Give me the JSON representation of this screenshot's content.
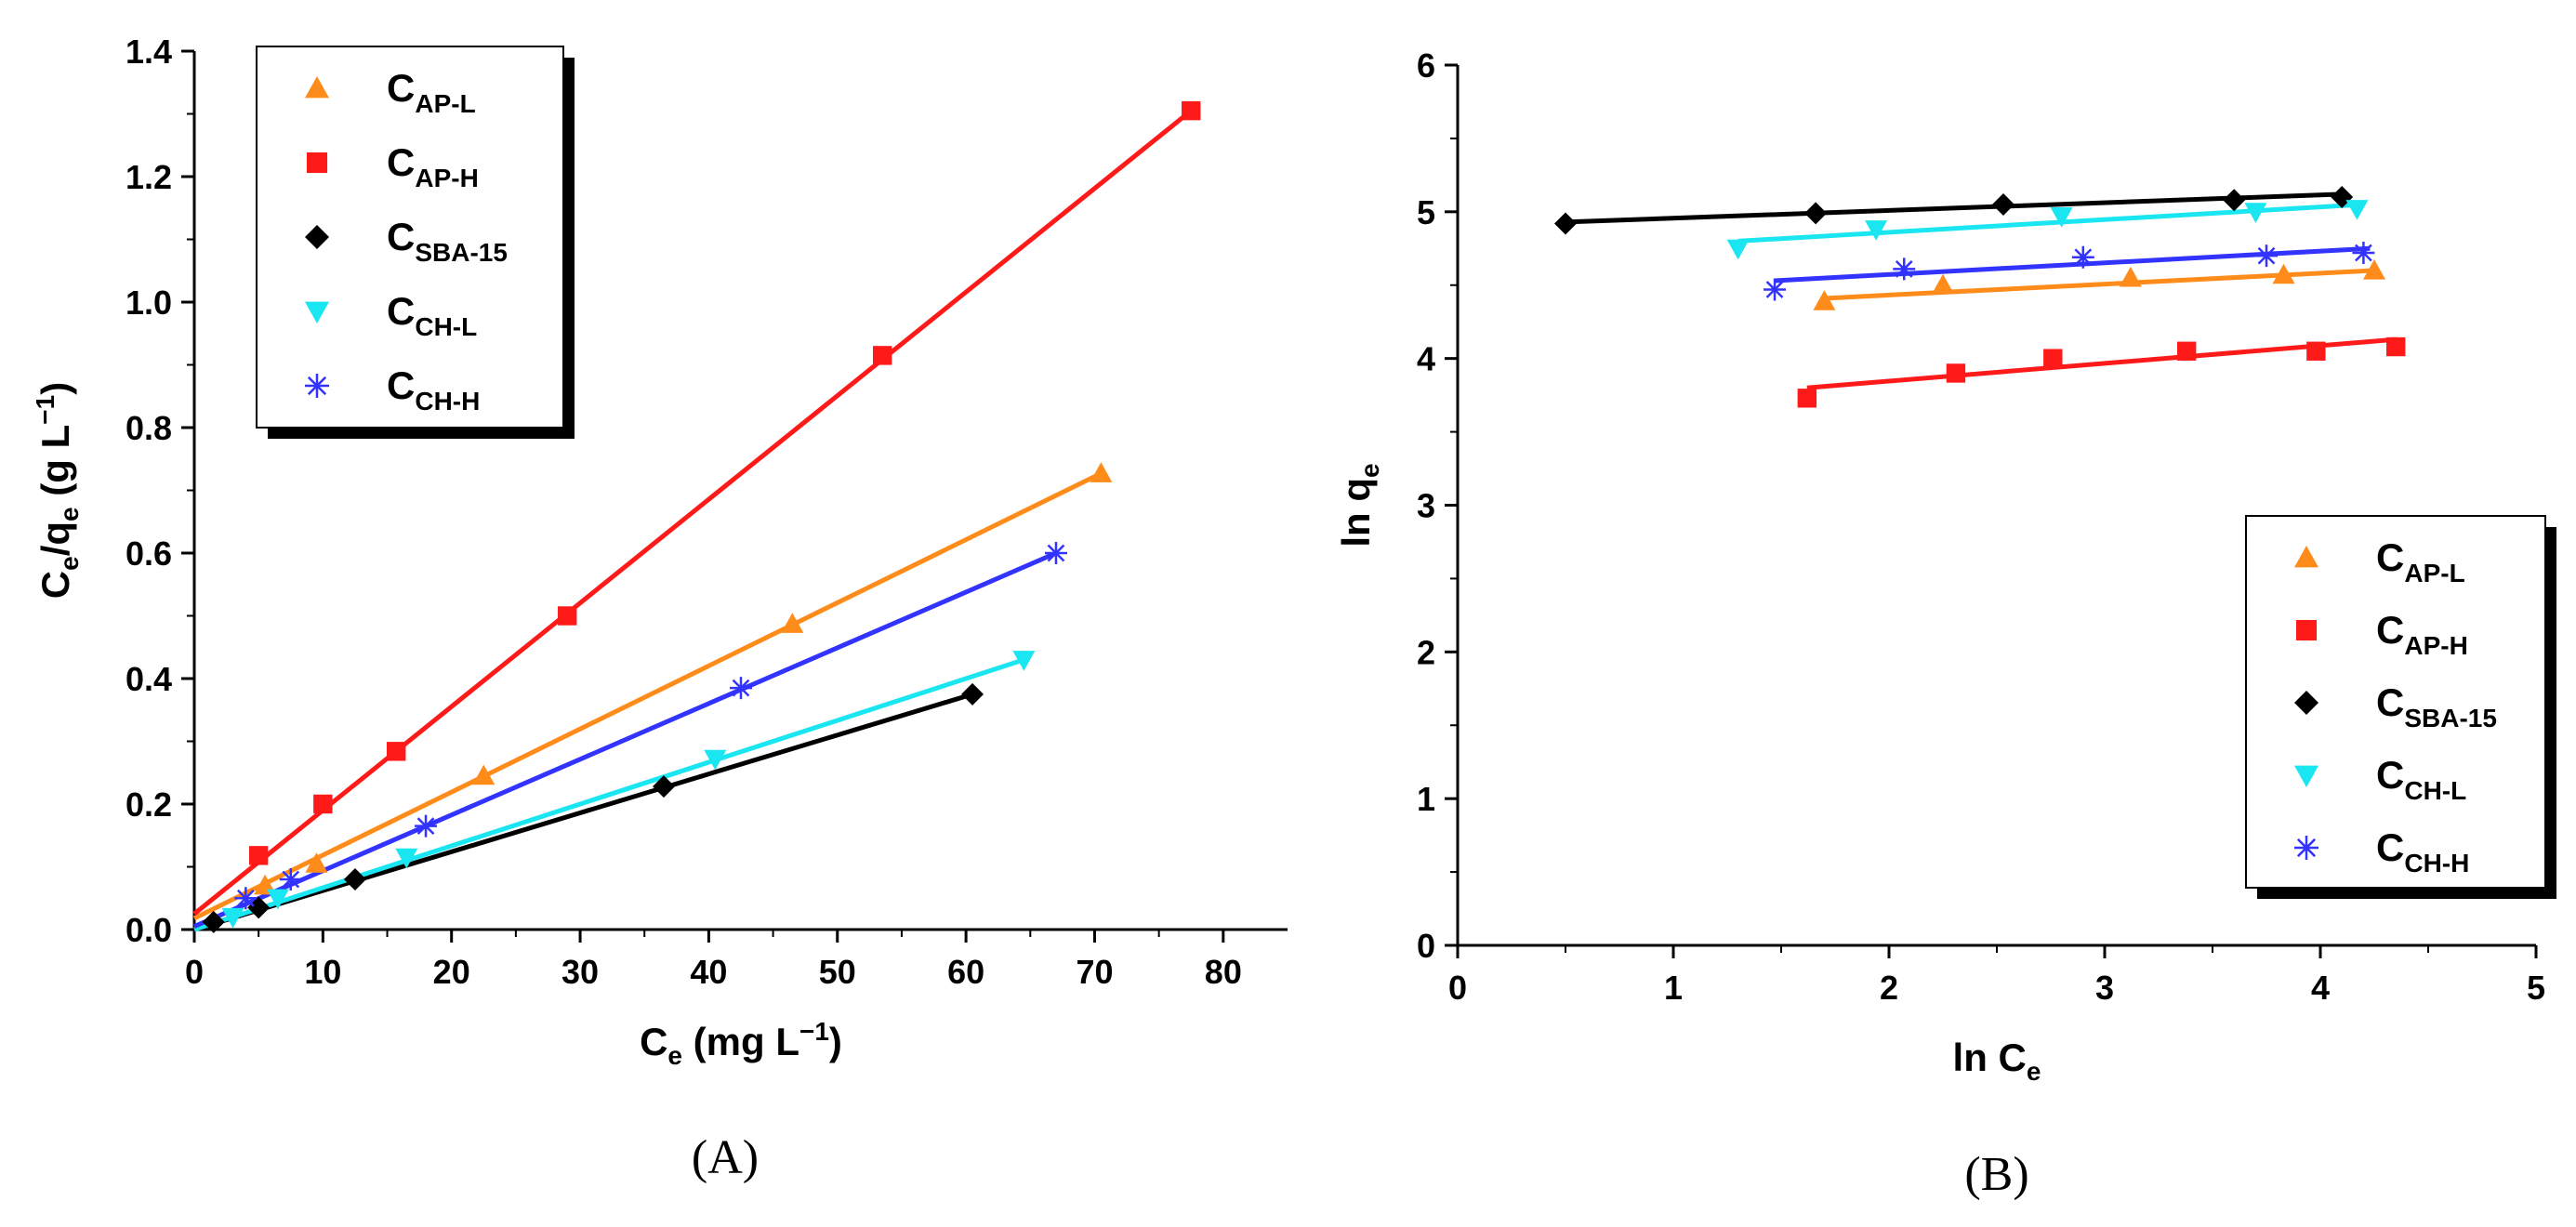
{
  "chart_data": [
    {
      "type": "scatter",
      "panel": "(A)",
      "title": "",
      "xlabel": "C_e (mg L^-1)",
      "xlabel_parts": {
        "main": "C",
        "sub": "e",
        "rest": " (mg L",
        "sup": "−1",
        "end": ")"
      },
      "ylabel": "C_e/q_e (g L^-1)",
      "ylabel_parts": {
        "main": "C",
        "sub": "e",
        "mid": "/q",
        "sub2": "e",
        "rest": " (g L",
        "sup": "−1",
        "end": ")"
      },
      "xlim": [
        0,
        85
      ],
      "ylim": [
        0,
        1.4
      ],
      "xticks": [
        0,
        10,
        20,
        30,
        40,
        50,
        60,
        70,
        80
      ],
      "xtick_labels": [
        "0",
        "10",
        "20",
        "30",
        "40",
        "50",
        "60",
        "70",
        "80"
      ],
      "yticks": [
        0,
        0.2,
        0.4,
        0.6,
        0.8,
        1.0,
        1.2,
        1.4
      ],
      "ytick_labels": [
        "0.0",
        "0.2",
        "0.4",
        "0.6",
        "0.8",
        "1.0",
        "1.2",
        "1.4"
      ],
      "legend_position": "top-left",
      "series": [
        {
          "name": "CAP-L",
          "label_main": "C",
          "label_sub": "AP-L",
          "marker": "triangle-up",
          "color": "#FF8C1A",
          "x": [
            5.5,
            9.5,
            22.5,
            46.5,
            70.5
          ],
          "y": [
            0.07,
            0.105,
            0.245,
            0.487,
            0.727
          ],
          "fit": {
            "x0": 0,
            "y0": 0.018,
            "x1": 70.5,
            "y1": 0.727
          }
        },
        {
          "name": "CAP-H",
          "label_main": "C",
          "label_sub": "AP-H",
          "marker": "square",
          "color": "#FF1A1A",
          "x": [
            5.0,
            10.0,
            15.7,
            29.0,
            53.5,
            77.5
          ],
          "y": [
            0.118,
            0.2,
            0.284,
            0.5,
            0.915,
            1.305
          ],
          "fit": {
            "x0": 0,
            "y0": 0.025,
            "x1": 77.5,
            "y1": 1.305
          }
        },
        {
          "name": "CSBA-15",
          "label_main": "C",
          "label_sub": "SBA-15",
          "marker": "diamond",
          "color": "#000000",
          "x": [
            1.5,
            5.0,
            12.5,
            36.5,
            60.5
          ],
          "y": [
            0.012,
            0.035,
            0.08,
            0.228,
            0.375
          ],
          "fit": {
            "x0": 0,
            "y0": 0.0,
            "x1": 60.5,
            "y1": 0.375
          }
        },
        {
          "name": "CCH-L",
          "label_main": "C",
          "label_sub": "CH-L",
          "marker": "triangle-down",
          "color": "#19E6F0",
          "x": [
            3.0,
            6.5,
            16.5,
            40.5,
            64.5
          ],
          "y": [
            0.02,
            0.05,
            0.115,
            0.272,
            0.43
          ],
          "fit": {
            "x0": 0,
            "y0": 0.0,
            "x1": 64.5,
            "y1": 0.43
          }
        },
        {
          "name": "CCH-H",
          "label_main": "C",
          "label_sub": "CH-H",
          "marker": "asterisk",
          "color": "#3333FF",
          "x": [
            4.0,
            7.5,
            18.0,
            42.5,
            67.0
          ],
          "y": [
            0.05,
            0.08,
            0.165,
            0.385,
            0.6
          ],
          "fit": {
            "x0": 0,
            "y0": 0.005,
            "x1": 67.0,
            "y1": 0.6
          }
        }
      ]
    },
    {
      "type": "scatter",
      "panel": "(B)",
      "title": "",
      "xlabel": "ln C_e",
      "xlabel_parts": {
        "main": "ln C",
        "sub": "e"
      },
      "ylabel": "ln q_e",
      "ylabel_parts": {
        "main": "ln q",
        "sub": "e"
      },
      "xlim": [
        0,
        5
      ],
      "ylim": [
        0,
        6
      ],
      "xticks": [
        0,
        1,
        2,
        3,
        4,
        5
      ],
      "xtick_labels": [
        "0",
        "1",
        "2",
        "3",
        "4",
        "5"
      ],
      "yticks": [
        0,
        1,
        2,
        3,
        4,
        5,
        6
      ],
      "ytick_labels": [
        "0",
        "1",
        "2",
        "3",
        "4",
        "5",
        "6"
      ],
      "legend_position": "bottom-right",
      "series": [
        {
          "name": "CAP-L",
          "label_main": "C",
          "label_sub": "AP-L",
          "marker": "triangle-up",
          "color": "#FF8C1A",
          "x": [
            1.7,
            2.25,
            3.12,
            3.83,
            4.25
          ],
          "y": [
            4.39,
            4.5,
            4.55,
            4.57,
            4.6
          ],
          "fit": {
            "x0": 1.7,
            "y0": 4.41,
            "x1": 4.25,
            "y1": 4.6
          }
        },
        {
          "name": "CAP-H",
          "label_main": "C",
          "label_sub": "AP-H",
          "marker": "square",
          "color": "#FF1A1A",
          "x": [
            1.62,
            2.31,
            2.76,
            3.38,
            3.98,
            4.35
          ],
          "y": [
            3.73,
            3.9,
            4.0,
            4.05,
            4.05,
            4.08
          ],
          "fit": {
            "x0": 1.62,
            "y0": 3.8,
            "x1": 4.35,
            "y1": 4.13
          }
        },
        {
          "name": "CSBA-15",
          "label_main": "C",
          "label_sub": "SBA-15",
          "marker": "diamond",
          "color": "#000000",
          "x": [
            0.5,
            1.66,
            2.53,
            3.6,
            4.1
          ],
          "y": [
            4.92,
            4.99,
            5.05,
            5.08,
            5.1
          ],
          "fit": {
            "x0": 0.5,
            "y0": 4.93,
            "x1": 4.1,
            "y1": 5.12
          }
        },
        {
          "name": "CCH-L",
          "label_main": "C",
          "label_sub": "CH-L",
          "marker": "triangle-down",
          "color": "#19E6F0",
          "x": [
            1.3,
            1.94,
            2.8,
            3.7,
            4.17
          ],
          "y": [
            4.75,
            4.88,
            4.97,
            5.0,
            5.02
          ],
          "fit": {
            "x0": 1.3,
            "y0": 4.8,
            "x1": 4.2,
            "y1": 5.05
          }
        },
        {
          "name": "CCH-H",
          "label_main": "C",
          "label_sub": "CH-H",
          "marker": "asterisk",
          "color": "#3333FF",
          "x": [
            1.47,
            2.07,
            2.9,
            3.75,
            4.2
          ],
          "y": [
            4.47,
            4.61,
            4.69,
            4.7,
            4.72
          ],
          "fit": {
            "x0": 1.47,
            "y0": 4.53,
            "x1": 4.23,
            "y1": 4.75
          }
        }
      ]
    }
  ]
}
